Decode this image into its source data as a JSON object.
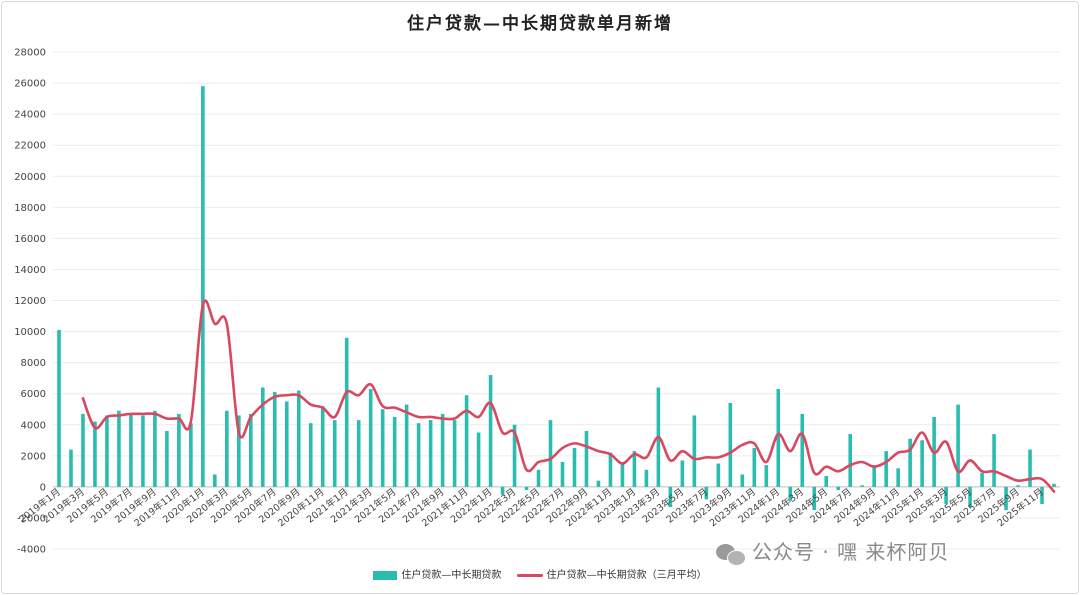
{
  "chart_data": {
    "type": "bar",
    "title": "住户贷款—中长期贷款单月新增",
    "ylim": [
      -4000,
      28000
    ],
    "yticks": [
      -4000,
      -2000,
      0,
      2000,
      4000,
      6000,
      8000,
      10000,
      12000,
      14000,
      16000,
      18000,
      20000,
      22000,
      24000,
      26000,
      28000
    ],
    "grid": "horizontal",
    "legend_position": "bottom",
    "x_labels_shown": [
      "2019年1月",
      "2019年3月",
      "2019年5月",
      "2019年7月",
      "2019年9月",
      "2019年11月",
      "2020年1月",
      "2020年3月",
      "2020年5月",
      "2020年7月",
      "2020年9月",
      "2020年11月",
      "2021年1月",
      "2021年3月",
      "2021年5月",
      "2021年7月",
      "2021年9月",
      "2021年11月",
      "2022年1月",
      "2022年3月",
      "2022年5月",
      "2022年7月",
      "2022年9月",
      "2022年11月",
      "2023年1月",
      "2023年3月",
      "2023年5月",
      "2023年7月",
      "2023年9月",
      "2023年11月",
      "2024年1月",
      "2024年3月",
      "2024年5月",
      "2024年7月",
      "2024年9月",
      "2024年11月",
      "2025年1月",
      "2025年3月",
      "2025年5月",
      "2025年7月",
      "2025年9月",
      "2025年11月"
    ],
    "series": [
      {
        "name": "住户贷款—中长期贷款",
        "type": "bar",
        "color": "#2bbcb0",
        "values": [
          10100,
          2400,
          4700,
          4200,
          4600,
          4900,
          4700,
          4600,
          4900,
          3600,
          4700,
          4100,
          25800,
          800,
          4900,
          4600,
          4700,
          6400,
          6100,
          5500,
          6200,
          4100,
          5200,
          4300,
          9600,
          4300,
          6300,
          5000,
          4500,
          5300,
          4100,
          4300,
          4700,
          4300,
          5900,
          3500,
          7200,
          -500,
          4000,
          -200,
          1100,
          4300,
          1600,
          2500,
          3600,
          400,
          2200,
          1600,
          2300,
          1100,
          6400,
          -1300,
          1700,
          4600,
          -800,
          1500,
          5400,
          800,
          2500,
          1400,
          6300,
          -900,
          4700,
          -1500,
          700,
          -200,
          3400,
          100,
          1400,
          2300,
          1200,
          3100,
          3000,
          4500,
          -1100,
          5300,
          -1300,
          900,
          3400,
          -1500,
          100,
          2400,
          -1100,
          200
        ]
      },
      {
        "name": "住户贷款—中长期贷款（三月平均）",
        "type": "line",
        "color": "#d9485f",
        "values": [
          null,
          null,
          5700,
          3800,
          4500,
          4600,
          4700,
          4700,
          4700,
          4400,
          4400,
          4200,
          11700,
          10500,
          10500,
          3500,
          4500,
          5300,
          5800,
          5900,
          5900,
          5300,
          5100,
          4500,
          6100,
          5900,
          6600,
          5200,
          5100,
          4800,
          4500,
          4500,
          4400,
          4400,
          4900,
          4500,
          5400,
          3500,
          3500,
          1100,
          1600,
          1800,
          2500,
          2800,
          2600,
          2300,
          2100,
          1500,
          2100,
          1900,
          3200,
          1700,
          2300,
          1800,
          1900,
          1900,
          2200,
          2700,
          2800,
          1600,
          3400,
          2300,
          3400,
          900,
          1300,
          1000,
          1400,
          1600,
          1300,
          1600,
          2200,
          2400,
          3500,
          2200,
          2900,
          1000,
          1700,
          1000,
          1000,
          700,
          400,
          500,
          500,
          -300
        ]
      }
    ]
  },
  "legend": {
    "bar_label": "住户贷款—中长期贷款",
    "line_label": "住户贷款—中长期贷款（三月平均）"
  },
  "watermark": "公众号 · 嘿 来杯阿贝",
  "watermark_icon": "wechat-icon"
}
